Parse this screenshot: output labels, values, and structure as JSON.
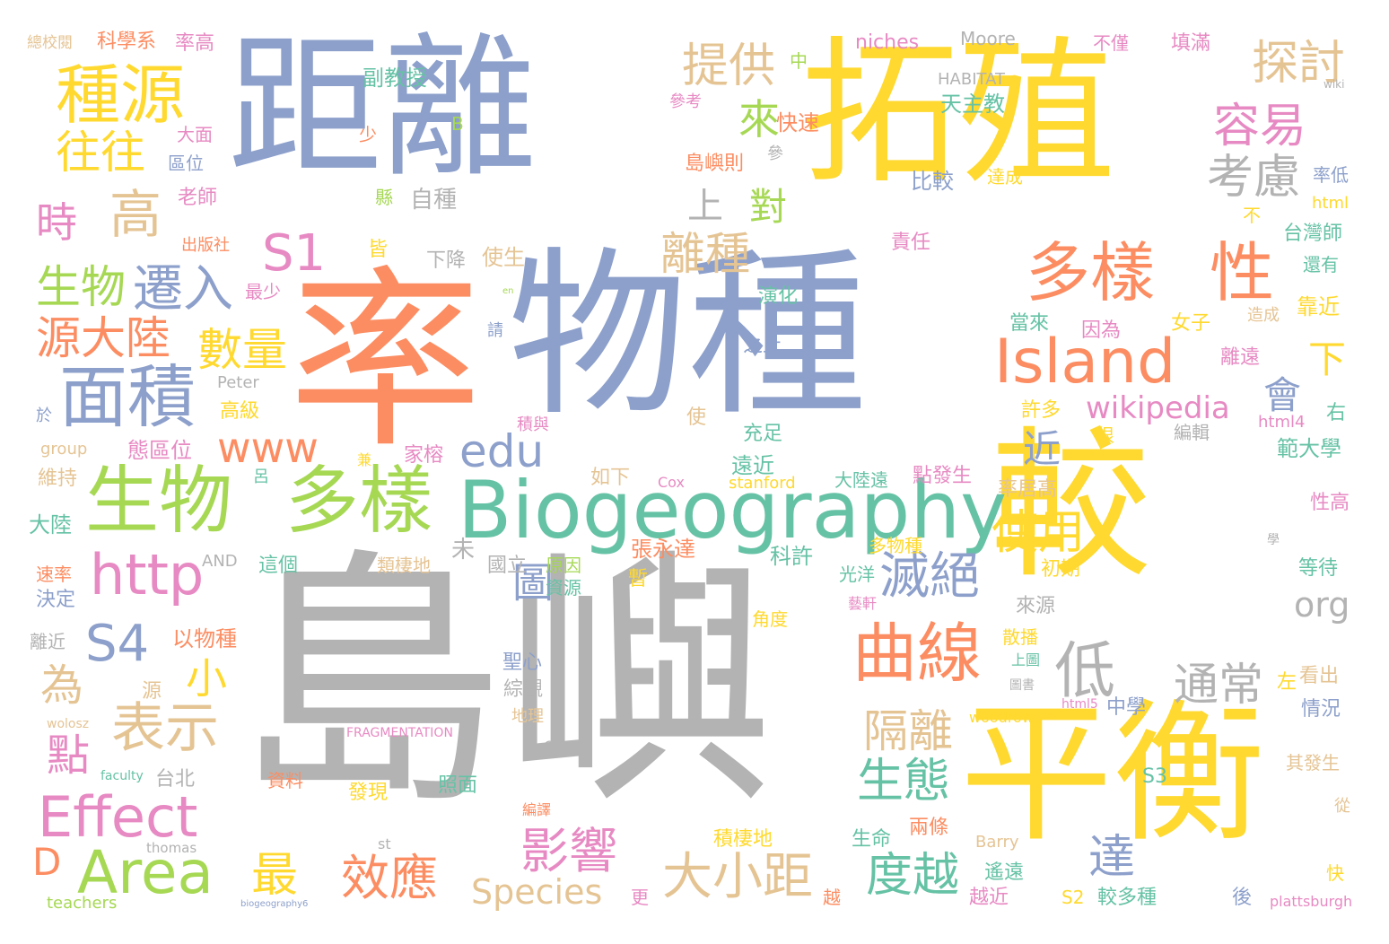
{
  "palette": {
    "gray": "#b3b3b3",
    "blue": "#8da0cb",
    "orange": "#fc8d62",
    "yellow": "#ffd92f",
    "green": "#a6d854",
    "teal": "#66c2a5",
    "pink": "#e78ac3",
    "tan": "#e5c494"
  },
  "words": [
    {
      "text": "島嶼",
      "color": "gray"
    },
    {
      "text": "率",
      "color": "orange"
    },
    {
      "text": "物種",
      "color": "blue"
    },
    {
      "text": "距離",
      "color": "blue"
    },
    {
      "text": "拓殖",
      "color": "yellow"
    },
    {
      "text": "較",
      "color": "yellow"
    },
    {
      "text": "平衡",
      "color": "yellow"
    },
    {
      "text": "Biogeography",
      "color": "teal"
    },
    {
      "text": "Island",
      "color": "orange"
    },
    {
      "text": "多樣",
      "color": "green"
    },
    {
      "text": "生物",
      "color": "green"
    },
    {
      "text": "面積",
      "color": "blue"
    },
    {
      "text": "種源",
      "color": "yellow"
    },
    {
      "text": "曲線",
      "color": "orange"
    },
    {
      "text": "多樣",
      "color": "orange"
    },
    {
      "text": "性",
      "color": "orange"
    },
    {
      "text": "Area",
      "color": "green"
    },
    {
      "text": "Effect",
      "color": "pink"
    },
    {
      "text": "http",
      "color": "pink"
    },
    {
      "text": "提供",
      "color": "tan"
    },
    {
      "text": "探討",
      "color": "tan"
    },
    {
      "text": "容易",
      "color": "pink"
    },
    {
      "text": "考慮",
      "color": "gray"
    },
    {
      "text": "高",
      "color": "tan"
    },
    {
      "text": "往往",
      "color": "yellow"
    },
    {
      "text": "來",
      "color": "green"
    },
    {
      "text": "S1",
      "color": "pink"
    },
    {
      "text": "遷入",
      "color": "blue"
    },
    {
      "text": "生物",
      "color": "green"
    },
    {
      "text": "源大陸",
      "color": "orange"
    },
    {
      "text": "數量",
      "color": "yellow"
    },
    {
      "text": "時",
      "color": "pink"
    },
    {
      "text": "www",
      "color": "orange"
    },
    {
      "text": "edu",
      "color": "blue"
    },
    {
      "text": "離種",
      "color": "tan"
    },
    {
      "text": "滅絕",
      "color": "blue"
    },
    {
      "text": "使用",
      "color": "yellow"
    },
    {
      "text": "wikipedia",
      "color": "pink"
    },
    {
      "text": "低",
      "color": "gray"
    },
    {
      "text": "通常",
      "color": "gray"
    },
    {
      "text": "表示",
      "color": "tan"
    },
    {
      "text": "S4",
      "color": "blue"
    },
    {
      "text": "隔離",
      "color": "tan"
    },
    {
      "text": "生態",
      "color": "teal"
    },
    {
      "text": "度越",
      "color": "teal"
    },
    {
      "text": "大小距",
      "color": "tan"
    },
    {
      "text": "效應",
      "color": "orange"
    },
    {
      "text": "影響",
      "color": "pink"
    },
    {
      "text": "Species",
      "color": "tan"
    },
    {
      "text": "org",
      "color": "gray"
    },
    {
      "text": "圖",
      "color": "blue"
    },
    {
      "text": "點",
      "color": "pink"
    },
    {
      "text": "為",
      "color": "tan"
    },
    {
      "text": "最",
      "color": "yellow"
    },
    {
      "text": "D",
      "color": "orange"
    },
    {
      "text": "下",
      "color": "yellow"
    },
    {
      "text": "會",
      "color": "blue"
    },
    {
      "text": "近",
      "color": "blue"
    },
    {
      "text": "對",
      "color": "green"
    },
    {
      "text": "上",
      "color": "gray"
    },
    {
      "text": "小",
      "color": "yellow"
    },
    {
      "text": "達",
      "color": "blue"
    },
    {
      "text": "niches",
      "color": "pink"
    },
    {
      "text": "Moore",
      "color": "gray"
    },
    {
      "text": "HABITAT",
      "color": "gray"
    },
    {
      "text": "不僅",
      "color": "pink"
    },
    {
      "text": "填滿",
      "color": "pink"
    },
    {
      "text": "總校閱",
      "color": "tan"
    },
    {
      "text": "科學系",
      "color": "orange"
    },
    {
      "text": "率高",
      "color": "pink"
    },
    {
      "text": "副教授",
      "color": "teal"
    },
    {
      "text": "天主教",
      "color": "teal"
    },
    {
      "text": "參考",
      "color": "pink"
    },
    {
      "text": "快速",
      "color": "orange"
    },
    {
      "text": "大面",
      "color": "pink"
    },
    {
      "text": "區位",
      "color": "blue"
    },
    {
      "text": "老師",
      "color": "pink"
    },
    {
      "text": "島嶼則",
      "color": "orange"
    },
    {
      "text": "比較",
      "color": "blue"
    },
    {
      "text": "達成",
      "color": "yellow"
    },
    {
      "text": "率低",
      "color": "blue"
    },
    {
      "text": "html",
      "color": "yellow"
    },
    {
      "text": "自種",
      "color": "gray"
    },
    {
      "text": "台灣師",
      "color": "teal"
    },
    {
      "text": "還有",
      "color": "teal"
    },
    {
      "text": "出版社",
      "color": "orange"
    },
    {
      "text": "責任",
      "color": "pink"
    },
    {
      "text": "下降",
      "color": "gray"
    },
    {
      "text": "使生",
      "color": "tan"
    },
    {
      "text": "最少",
      "color": "pink"
    },
    {
      "text": "演化",
      "color": "teal"
    },
    {
      "text": "當來",
      "color": "teal"
    },
    {
      "text": "因為",
      "color": "pink"
    },
    {
      "text": "女子",
      "color": "yellow"
    },
    {
      "text": "造成",
      "color": "tan"
    },
    {
      "text": "靠近",
      "color": "yellow"
    },
    {
      "text": "之上",
      "color": "blue"
    },
    {
      "text": "離遠",
      "color": "pink"
    },
    {
      "text": "Peter",
      "color": "gray"
    },
    {
      "text": "高級",
      "color": "yellow"
    },
    {
      "text": "許多",
      "color": "yellow"
    },
    {
      "text": "html4",
      "color": "pink"
    },
    {
      "text": "右",
      "color": "teal"
    },
    {
      "text": "態區位",
      "color": "pink"
    },
    {
      "text": "group",
      "color": "tan"
    },
    {
      "text": "家榕",
      "color": "pink"
    },
    {
      "text": "充足",
      "color": "teal"
    },
    {
      "text": "編輯",
      "color": "gray"
    },
    {
      "text": "範大學",
      "color": "teal"
    },
    {
      "text": "積與",
      "color": "pink"
    },
    {
      "text": "維持",
      "color": "tan"
    },
    {
      "text": "遠近",
      "color": "teal"
    },
    {
      "text": "stanford",
      "color": "yellow"
    },
    {
      "text": "大陸遠",
      "color": "teal"
    },
    {
      "text": "點發生",
      "color": "pink"
    },
    {
      "text": "率居高",
      "color": "tan"
    },
    {
      "text": "性高",
      "color": "pink"
    },
    {
      "text": "Cox",
      "color": "pink"
    },
    {
      "text": "如下",
      "color": "tan"
    },
    {
      "text": "大陸",
      "color": "teal"
    },
    {
      "text": "張永達",
      "color": "orange"
    },
    {
      "text": "科許",
      "color": "teal"
    },
    {
      "text": "多物種",
      "color": "yellow"
    },
    {
      "text": "AND",
      "color": "gray"
    },
    {
      "text": "這個",
      "color": "teal"
    },
    {
      "text": "類棲地",
      "color": "tan"
    },
    {
      "text": "國立",
      "color": "gray"
    },
    {
      "text": "原因",
      "color": "green"
    },
    {
      "text": "初期",
      "color": "yellow"
    },
    {
      "text": "等待",
      "color": "teal"
    },
    {
      "text": "速率",
      "color": "orange"
    },
    {
      "text": "決定",
      "color": "blue"
    },
    {
      "text": "資源",
      "color": "teal"
    },
    {
      "text": "光洋",
      "color": "teal"
    },
    {
      "text": "來源",
      "color": "gray"
    },
    {
      "text": "離近",
      "color": "gray"
    },
    {
      "text": "以物種",
      "color": "orange"
    },
    {
      "text": "角度",
      "color": "yellow"
    },
    {
      "text": "散播",
      "color": "yellow"
    },
    {
      "text": "聖心",
      "color": "blue"
    },
    {
      "text": "綜觀",
      "color": "gray"
    },
    {
      "text": "上圖",
      "color": "teal"
    },
    {
      "text": "看出",
      "color": "tan"
    },
    {
      "text": "左",
      "color": "yellow"
    },
    {
      "text": "情況",
      "color": "blue"
    },
    {
      "text": "地理",
      "color": "tan"
    },
    {
      "text": "中學",
      "color": "blue"
    },
    {
      "text": "woodrow",
      "color": "yellow"
    },
    {
      "text": "FRAGMENTATION",
      "color": "pink"
    },
    {
      "text": "wolosz",
      "color": "tan"
    },
    {
      "text": "faculty",
      "color": "teal"
    },
    {
      "text": "台北",
      "color": "gray"
    },
    {
      "text": "資料",
      "color": "orange"
    },
    {
      "text": "發現",
      "color": "yellow"
    },
    {
      "text": "照面",
      "color": "teal"
    },
    {
      "text": "S3",
      "color": "teal"
    },
    {
      "text": "其發生",
      "color": "tan"
    },
    {
      "text": "編譯",
      "color": "orange"
    },
    {
      "text": "積棲地",
      "color": "yellow"
    },
    {
      "text": "生命",
      "color": "teal"
    },
    {
      "text": "兩條",
      "color": "orange"
    },
    {
      "text": "Barry",
      "color": "tan"
    },
    {
      "text": "thomas",
      "color": "gray"
    },
    {
      "text": "st",
      "color": "gray"
    },
    {
      "text": "遙遠",
      "color": "teal"
    },
    {
      "text": "teachers",
      "color": "green"
    },
    {
      "text": "biogeography6",
      "color": "blue"
    },
    {
      "text": "越近",
      "color": "pink"
    },
    {
      "text": "S2",
      "color": "yellow"
    },
    {
      "text": "較多種",
      "color": "teal"
    },
    {
      "text": "後",
      "color": "blue"
    },
    {
      "text": "快",
      "color": "yellow"
    },
    {
      "text": "plattsburgh",
      "color": "pink"
    },
    {
      "text": "更",
      "color": "pink"
    },
    {
      "text": "越",
      "color": "orange"
    },
    {
      "text": "中",
      "color": "green"
    },
    {
      "text": "B",
      "color": "green"
    },
    {
      "text": "少",
      "color": "orange"
    },
    {
      "text": "參",
      "color": "gray"
    },
    {
      "text": "wiki",
      "color": "gray"
    },
    {
      "text": "縣",
      "color": "green"
    },
    {
      "text": "皆",
      "color": "yellow"
    },
    {
      "text": "en",
      "color": "green"
    },
    {
      "text": "請",
      "color": "blue"
    },
    {
      "text": "於",
      "color": "blue"
    },
    {
      "text": "使",
      "color": "tan"
    },
    {
      "text": "呂",
      "color": "teal"
    },
    {
      "text": "兼",
      "color": "yellow"
    },
    {
      "text": "未",
      "color": "gray"
    },
    {
      "text": "暫",
      "color": "yellow"
    },
    {
      "text": "藝軒",
      "color": "pink"
    },
    {
      "text": "源",
      "color": "tan"
    },
    {
      "text": "圖書",
      "color": "gray"
    },
    {
      "text": "html5",
      "color": "pink"
    },
    {
      "text": "學",
      "color": "gray"
    },
    {
      "text": "不",
      "color": "yellow"
    },
    {
      "text": "很",
      "color": "yellow"
    },
    {
      "text": "從",
      "color": "tan"
    },
    {
      "text": "C",
      "color": "gray"
    }
  ]
}
